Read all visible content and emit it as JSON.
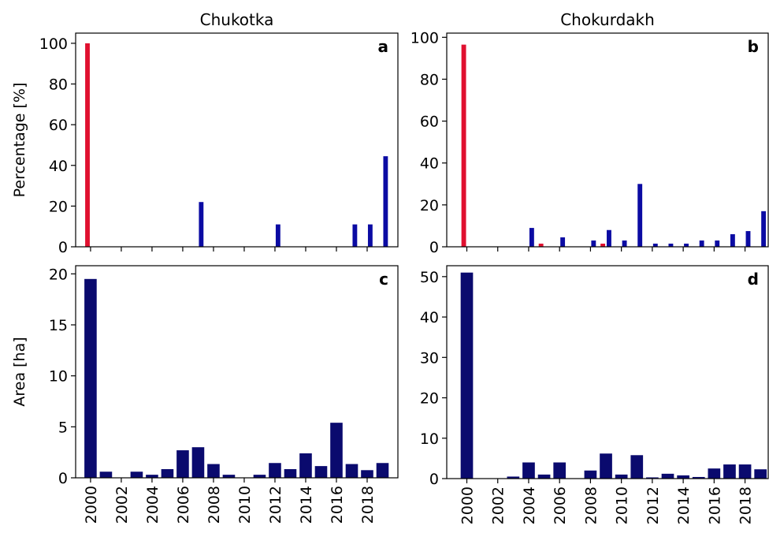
{
  "chart_data": [
    {
      "type": "bar",
      "title": "Chukotka",
      "ylabel": "Percentage [%]",
      "annotation": "a",
      "x": [
        2000,
        2001,
        2002,
        2003,
        2004,
        2005,
        2006,
        2007,
        2008,
        2009,
        2010,
        2011,
        2012,
        2013,
        2014,
        2015,
        2016,
        2017,
        2018,
        2019
      ],
      "series": [
        {
          "color": "#0b0ba3",
          "values": [
            0,
            0,
            0,
            0,
            0,
            0,
            0,
            22,
            0,
            0,
            0,
            0,
            11,
            0,
            0,
            0,
            0,
            11,
            11,
            44.5
          ]
        },
        {
          "color": "#e0102f",
          "values": [
            100,
            0,
            0,
            0,
            0,
            0,
            0,
            0,
            0,
            0,
            0,
            0,
            0,
            0,
            0,
            0,
            0,
            0,
            0,
            0
          ]
        }
      ],
      "xlim": [
        1999.03,
        2020
      ],
      "xticks": [
        2000,
        2002,
        2004,
        2006,
        2008,
        2010,
        2012,
        2014,
        2016,
        2018
      ],
      "show_xtick_labels": false,
      "ylim": [
        0,
        105
      ],
      "yticks": [
        0,
        20,
        40,
        60,
        80,
        100
      ]
    },
    {
      "type": "bar",
      "title": "Chokurdakh",
      "annotation": "b",
      "x": [
        2000,
        2001,
        2002,
        2003,
        2004,
        2005,
        2006,
        2007,
        2008,
        2009,
        2010,
        2011,
        2012,
        2013,
        2014,
        2015,
        2016,
        2017,
        2018,
        2019
      ],
      "series": [
        {
          "color": "#0b0ba3",
          "values": [
            0,
            0,
            0,
            0,
            9,
            0,
            4.5,
            0,
            3,
            8,
            3,
            30,
            1.5,
            1.5,
            1.5,
            3,
            3,
            6,
            7.5,
            17
          ]
        },
        {
          "color": "#e0102f",
          "values": [
            96.5,
            0,
            0,
            0,
            0,
            1.5,
            0,
            0,
            0,
            1.5,
            0,
            0,
            0,
            0,
            0,
            0,
            0,
            0,
            0,
            0
          ]
        }
      ],
      "xlim": [
        1998.7,
        2019.5
      ],
      "xticks": [
        2000,
        2002,
        2004,
        2006,
        2008,
        2010,
        2012,
        2014,
        2016,
        2018
      ],
      "show_xtick_labels": false,
      "ylim": [
        0,
        102
      ],
      "yticks": [
        0,
        20,
        40,
        60,
        80,
        100
      ]
    },
    {
      "type": "bar",
      "ylabel": "Area [ha]",
      "annotation": "c",
      "x": [
        2000,
        2001,
        2002,
        2003,
        2004,
        2005,
        2006,
        2007,
        2008,
        2009,
        2010,
        2011,
        2012,
        2013,
        2014,
        2015,
        2016,
        2017,
        2018,
        2019
      ],
      "series": [
        {
          "color": "#0a0a6e",
          "values": [
            19.5,
            0.6,
            0,
            0.6,
            0.3,
            0.85,
            2.7,
            3.0,
            1.35,
            0.3,
            0,
            0.3,
            1.45,
            0.85,
            2.4,
            1.15,
            5.4,
            1.35,
            0.75,
            1.45
          ]
        }
      ],
      "xlim": [
        1999.03,
        2020
      ],
      "xticks": [
        2000,
        2002,
        2004,
        2006,
        2008,
        2010,
        2012,
        2014,
        2016,
        2018
      ],
      "show_xtick_labels": true,
      "ylim": [
        0,
        20.8
      ],
      "yticks": [
        0,
        5,
        10,
        15,
        20
      ]
    },
    {
      "type": "bar",
      "annotation": "d",
      "x": [
        2000,
        2001,
        2002,
        2003,
        2004,
        2005,
        2006,
        2007,
        2008,
        2009,
        2010,
        2011,
        2012,
        2013,
        2014,
        2015,
        2016,
        2017,
        2018,
        2019
      ],
      "series": [
        {
          "color": "#0a0a6e",
          "values": [
            51,
            0,
            0,
            0.5,
            4,
            1,
            4,
            0,
            2,
            6.2,
            1,
            5.8,
            0.3,
            1.2,
            0.8,
            0.4,
            2.5,
            3.5,
            3.5,
            2.3
          ]
        }
      ],
      "xlim": [
        1998.7,
        2019.5
      ],
      "xticks": [
        2000,
        2002,
        2004,
        2006,
        2008,
        2010,
        2012,
        2014,
        2016,
        2018
      ],
      "show_xtick_labels": true,
      "ylim": [
        0,
        52.7
      ],
      "yticks": [
        0,
        10,
        20,
        30,
        40,
        50
      ]
    }
  ]
}
